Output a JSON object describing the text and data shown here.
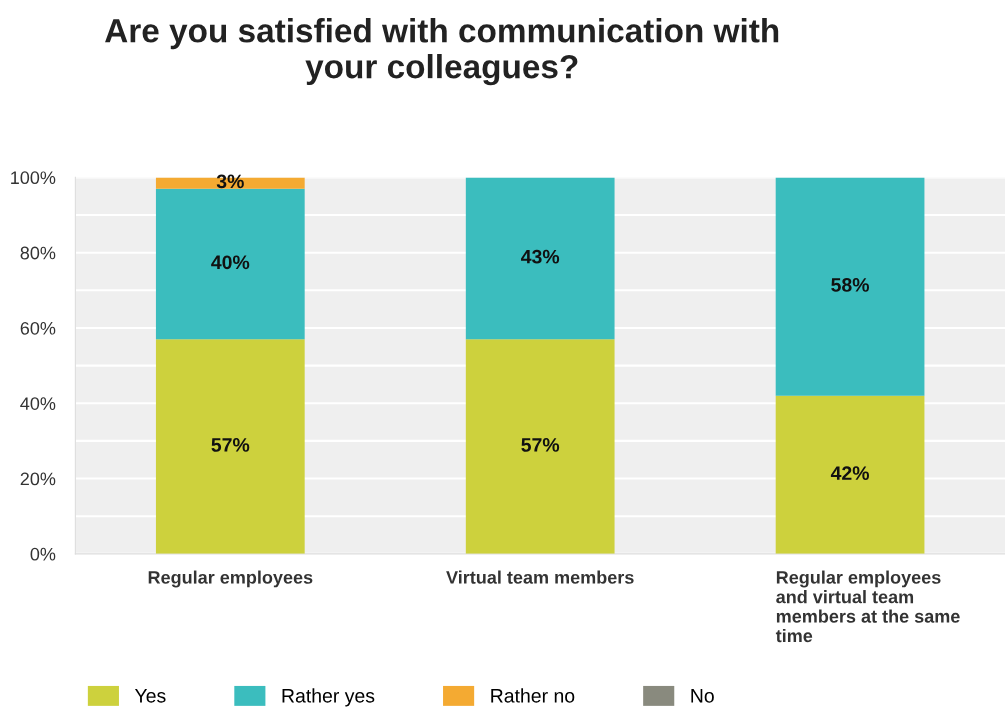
{
  "chart_data": {
    "type": "bar",
    "title": "Are you satisfied with communication with\nyour colleagues?",
    "categories": [
      "Regular employees",
      "Virtual team members",
      "Regular employees\nand virtual team\nmembers at the same\ntime"
    ],
    "stacked": true,
    "series": [
      {
        "name": "Yes",
        "color": "#cdd13d",
        "values": [
          57,
          57,
          42
        ],
        "value_labels": [
          "57%",
          "57%",
          "42%"
        ]
      },
      {
        "name": "Rather yes",
        "color": "#3bbdbe",
        "values": [
          40,
          43,
          58
        ],
        "value_labels": [
          "40%",
          "43%",
          "58%"
        ]
      },
      {
        "name": "Rather no",
        "color": "#f4aa32",
        "values": [
          3,
          0,
          0
        ],
        "value_labels": [
          "3%",
          null,
          null
        ]
      },
      {
        "name": "No",
        "color": "#898a7e",
        "values": [
          0,
          0,
          0
        ],
        "value_labels": [
          null,
          null,
          null
        ]
      }
    ],
    "ylim": [
      0,
      100
    ],
    "yticks": [
      {
        "value": 0,
        "label": "0%"
      },
      {
        "value": 10,
        "label": null
      },
      {
        "value": 20,
        "label": "20%"
      },
      {
        "value": 30,
        "label": null
      },
      {
        "value": 40,
        "label": "40%"
      },
      {
        "value": 50,
        "label": null
      },
      {
        "value": 60,
        "label": "60%"
      },
      {
        "value": 70,
        "label": null
      },
      {
        "value": 80,
        "label": "80%"
      },
      {
        "value": 90,
        "label": null
      },
      {
        "value": 100,
        "label": "100%"
      }
    ],
    "grid": "y",
    "legend": "bottom"
  }
}
